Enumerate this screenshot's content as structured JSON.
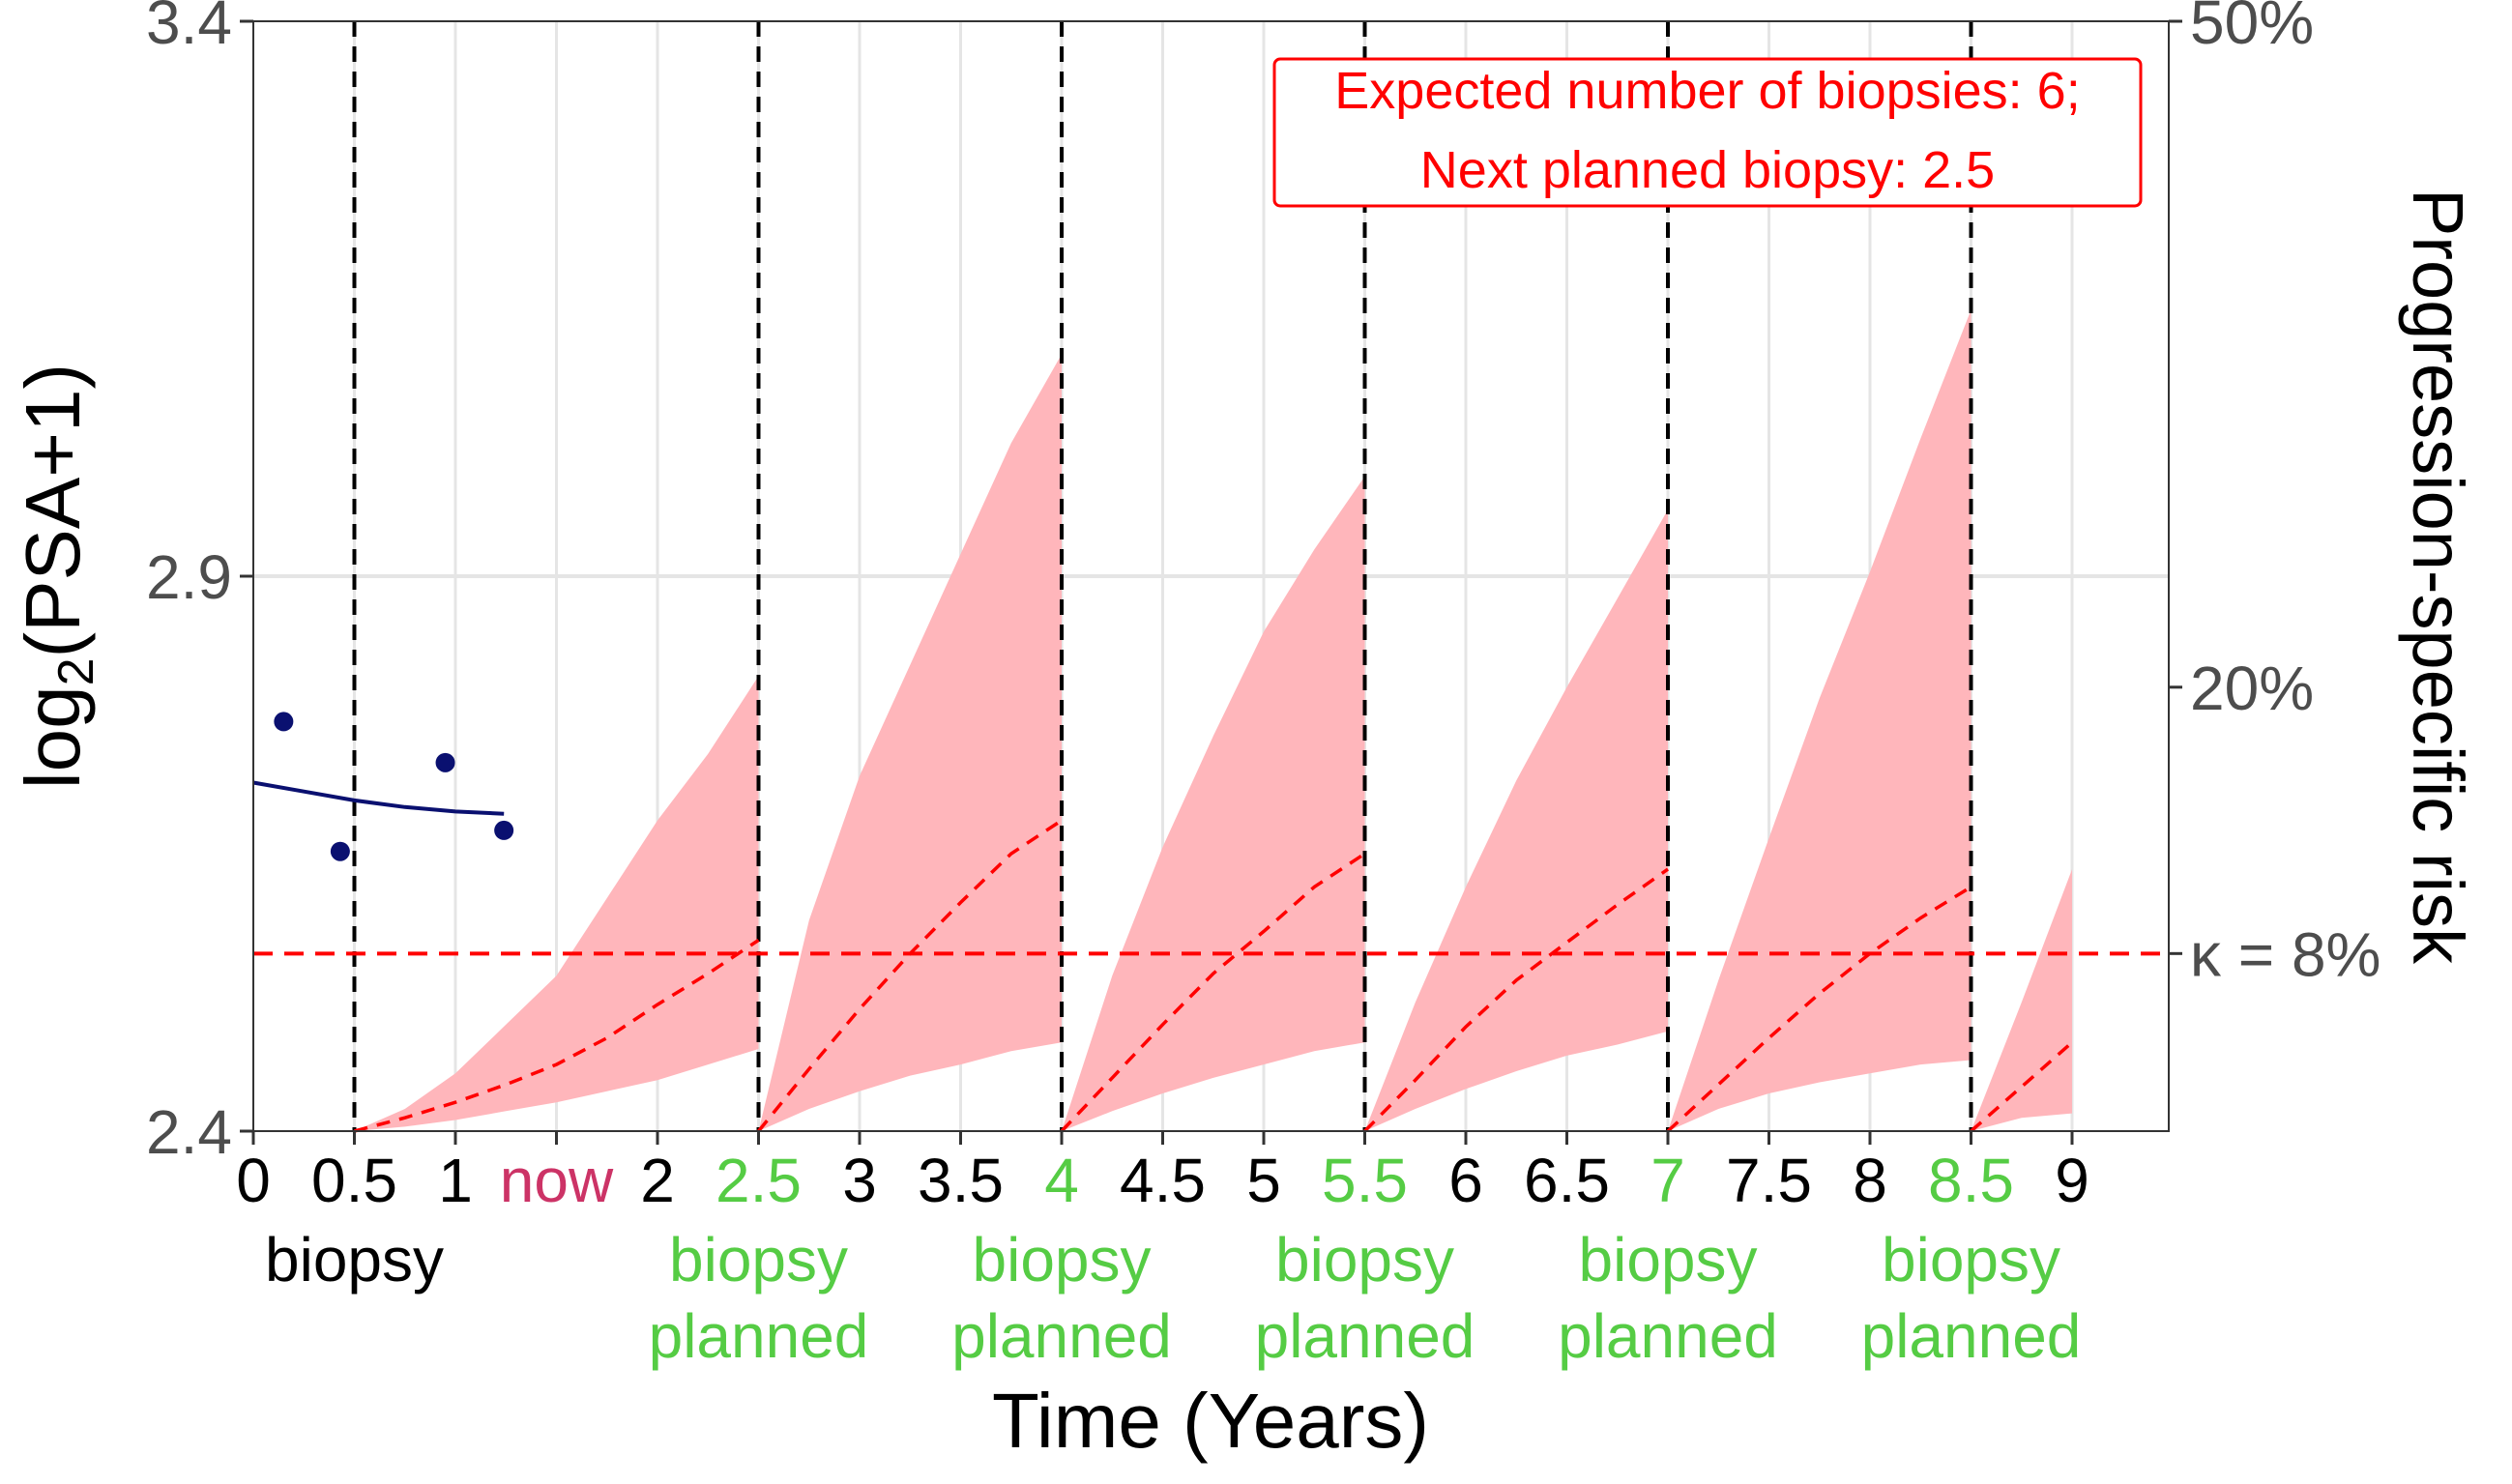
{
  "chart_data": {
    "type": "line",
    "xlabel": "Time (Years)",
    "ylabel": {
      "pre": "log",
      "sub": "2",
      "post": "(PSA+1)"
    },
    "y2label": "Progression-specific risk",
    "xlim": [
      0,
      9.5
    ],
    "ylim": [
      2.4,
      3.4
    ],
    "yticks": [
      2.4,
      2.9,
      3.4
    ],
    "y2_ticks": [
      {
        "value": 0.08,
        "label": "κ = 8%"
      },
      {
        "value": 0.2,
        "label": "20%"
      },
      {
        "value": 0.5,
        "label": "50%"
      }
    ],
    "risk_range": [
      0.0,
      0.5
    ],
    "xticks": [
      {
        "value": 0,
        "label": "0",
        "color": "#000000"
      },
      {
        "value": 0.5,
        "label": "0.5",
        "color": "#000000"
      },
      {
        "value": 1,
        "label": "1",
        "color": "#000000"
      },
      {
        "value": 1.5,
        "label": "now",
        "color": "#cc3366"
      },
      {
        "value": 2,
        "label": "2",
        "color": "#000000"
      },
      {
        "value": 2.5,
        "label": "2.5",
        "color": "#55cc44"
      },
      {
        "value": 3,
        "label": "3",
        "color": "#000000"
      },
      {
        "value": 3.5,
        "label": "3.5",
        "color": "#000000"
      },
      {
        "value": 4,
        "label": "4",
        "color": "#55cc44"
      },
      {
        "value": 4.5,
        "label": "4.5",
        "color": "#000000"
      },
      {
        "value": 5,
        "label": "5",
        "color": "#000000"
      },
      {
        "value": 5.5,
        "label": "5.5",
        "color": "#55cc44"
      },
      {
        "value": 6,
        "label": "6",
        "color": "#000000"
      },
      {
        "value": 6.5,
        "label": "6.5",
        "color": "#000000"
      },
      {
        "value": 7,
        "label": "7",
        "color": "#55cc44"
      },
      {
        "value": 7.5,
        "label": "7.5",
        "color": "#000000"
      },
      {
        "value": 8,
        "label": "8",
        "color": "#000000"
      },
      {
        "value": 8.5,
        "label": "8.5",
        "color": "#55cc44"
      },
      {
        "value": 9,
        "label": "9",
        "color": "#000000"
      }
    ],
    "biopsy_labels": [
      {
        "x": 0.5,
        "lines": [
          "biopsy"
        ],
        "color": "#000000"
      },
      {
        "x": 2.5,
        "lines": [
          "biopsy",
          "planned"
        ],
        "color": "#55cc44"
      },
      {
        "x": 4,
        "lines": [
          "biopsy",
          "planned"
        ],
        "color": "#55cc44"
      },
      {
        "x": 5.5,
        "lines": [
          "biopsy",
          "planned"
        ],
        "color": "#55cc44"
      },
      {
        "x": 7,
        "lines": [
          "biopsy",
          "planned"
        ],
        "color": "#55cc44"
      },
      {
        "x": 8.5,
        "lines": [
          "biopsy",
          "planned"
        ],
        "color": "#55cc44"
      }
    ],
    "vlines": [
      0.5,
      2.5,
      4,
      5.5,
      7,
      8.5
    ],
    "threshold_risk": 0.08,
    "psa_points": [
      {
        "x": 0.15,
        "y": 2.769
      },
      {
        "x": 0.43,
        "y": 2.652
      },
      {
        "x": 0.95,
        "y": 2.732
      },
      {
        "x": 1.24,
        "y": 2.671
      }
    ],
    "psa_fit": [
      {
        "x": 0.0,
        "y": 2.714
      },
      {
        "x": 0.25,
        "y": 2.706
      },
      {
        "x": 0.5,
        "y": 2.698
      },
      {
        "x": 0.75,
        "y": 2.692
      },
      {
        "x": 1.0,
        "y": 2.688
      },
      {
        "x": 1.24,
        "y": 2.686
      }
    ],
    "risk_segments": [
      {
        "x": [
          0.5,
          0.75,
          1.0,
          1.25,
          1.5,
          1.75,
          2.0,
          2.25,
          2.5
        ],
        "lower": [
          0.0,
          0.002,
          0.005,
          0.009,
          0.013,
          0.018,
          0.023,
          0.03,
          0.037
        ],
        "median": [
          0.0,
          0.006,
          0.013,
          0.021,
          0.03,
          0.042,
          0.057,
          0.071,
          0.086
        ],
        "upper": [
          0.0,
          0.01,
          0.026,
          0.048,
          0.07,
          0.105,
          0.14,
          0.17,
          0.205
        ]
      },
      {
        "x": [
          2.5,
          2.75,
          3.0,
          3.25,
          3.5,
          3.75,
          4.0
        ],
        "lower": [
          0.0,
          0.01,
          0.018,
          0.025,
          0.03,
          0.036,
          0.04
        ],
        "median": [
          0.0,
          0.028,
          0.055,
          0.08,
          0.103,
          0.125,
          0.14
        ],
        "upper": [
          0.0,
          0.095,
          0.16,
          0.21,
          0.26,
          0.31,
          0.35
        ]
      },
      {
        "x": [
          4.0,
          4.25,
          4.5,
          4.75,
          5.0,
          5.25,
          5.5
        ],
        "lower": [
          0.0,
          0.009,
          0.017,
          0.024,
          0.03,
          0.036,
          0.04
        ],
        "median": [
          0.0,
          0.024,
          0.048,
          0.071,
          0.09,
          0.11,
          0.125
        ],
        "upper": [
          0.0,
          0.07,
          0.128,
          0.178,
          0.225,
          0.262,
          0.295
        ]
      },
      {
        "x": [
          5.5,
          5.75,
          6.0,
          6.25,
          6.5,
          6.75,
          7.0
        ],
        "lower": [
          0.0,
          0.01,
          0.019,
          0.027,
          0.034,
          0.039,
          0.045
        ],
        "median": [
          0.0,
          0.023,
          0.047,
          0.068,
          0.085,
          0.102,
          0.118
        ],
        "upper": [
          0.0,
          0.058,
          0.11,
          0.158,
          0.2,
          0.24,
          0.28
        ]
      },
      {
        "x": [
          7.0,
          7.25,
          7.5,
          7.75,
          8.0,
          8.25,
          8.5
        ],
        "lower": [
          0.0,
          0.01,
          0.017,
          0.022,
          0.026,
          0.03,
          0.032
        ],
        "median": [
          0.0,
          0.021,
          0.042,
          0.062,
          0.08,
          0.096,
          0.11
        ],
        "upper": [
          0.0,
          0.068,
          0.132,
          0.195,
          0.252,
          0.312,
          0.37
        ]
      },
      {
        "x": [
          8.5,
          8.75,
          9.0
        ],
        "lower": [
          0.0,
          0.006,
          0.008
        ],
        "median": [
          0.0,
          0.02,
          0.04
        ],
        "upper": [
          0.0,
          0.058,
          0.118
        ]
      }
    ],
    "annotation": [
      "Expected number of biopsies: 6;",
      "Next planned biopsy: 2.5"
    ],
    "grid": true
  },
  "colors": {
    "psa": "#0a1070",
    "risk_fill": "#ffb6bb",
    "risk_line": "#ff0000",
    "vline": "#000000",
    "grid": "#e5e5e5"
  }
}
